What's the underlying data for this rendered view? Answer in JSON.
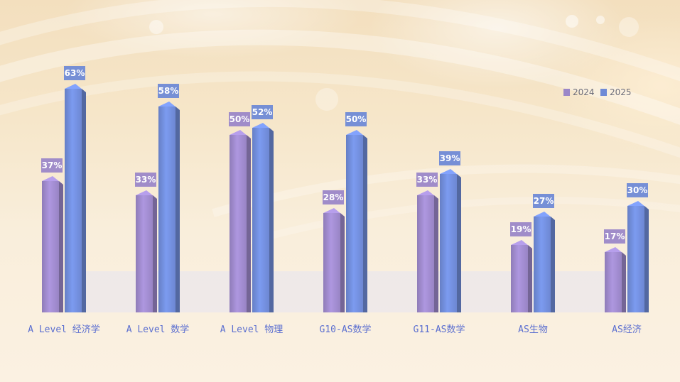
{
  "chart_data": {
    "type": "bar",
    "categories": [
      "A Level 经济学",
      "A Level 数学",
      "A Level 物理",
      "G10-AS数学",
      "G11-AS数学",
      "AS生物",
      "AS经济"
    ],
    "series": [
      {
        "name": "2024",
        "values": [
          37,
          33,
          50,
          28,
          33,
          19,
          17
        ],
        "labels": [
          "37%",
          "33%",
          "50%",
          "28%",
          "33%",
          "19%",
          "17%"
        ]
      },
      {
        "name": "2025",
        "values": [
          63,
          58,
          52,
          50,
          39,
          27,
          30
        ],
        "labels": [
          "63%",
          "58%",
          "52%",
          "50%",
          "39%",
          "27%",
          "30%"
        ]
      }
    ],
    "ylim": [
      0,
      70
    ],
    "legend": "top-right",
    "grid": false,
    "colors": {
      "2024": "#9b87c8",
      "2025": "#6f8ad6"
    }
  }
}
